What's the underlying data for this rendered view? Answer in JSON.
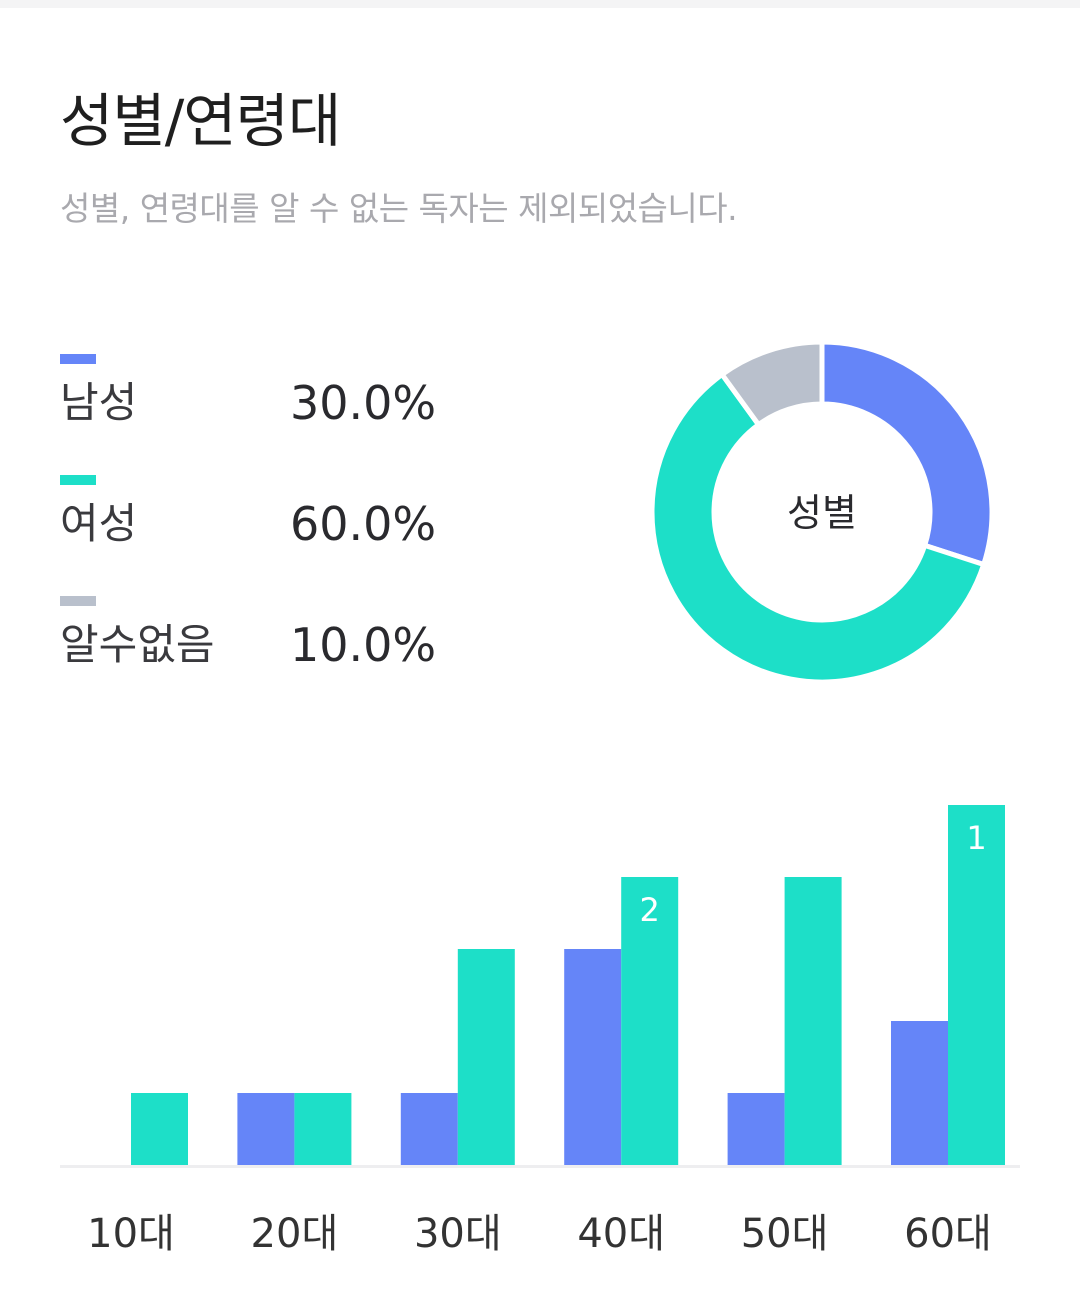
{
  "header": {
    "title": "성별/연령대",
    "subtitle": "성별, 연령대를 알 수 없는 독자는 제외되었습니다."
  },
  "colors": {
    "male": "#6585f8",
    "female": "#1ddfc8",
    "unknown": "#b9c0cc",
    "baseline": "#eeeef0",
    "tick_text": "#333333",
    "bar_label_text": "#ffffff"
  },
  "chart_data": [
    {
      "type": "pie",
      "variant": "donut",
      "center_label": "성별",
      "slices": [
        {
          "label": "남성",
          "value": 30.0,
          "display": "30.0%",
          "color": "#6585f8"
        },
        {
          "label": "여성",
          "value": 60.0,
          "display": "60.0%",
          "color": "#1ddfc8"
        },
        {
          "label": "알수없음",
          "value": 10.0,
          "display": "10.0%",
          "color": "#b9c0cc"
        }
      ],
      "legend_position": "left"
    },
    {
      "type": "bar",
      "categories": [
        "10대",
        "20대",
        "30대",
        "40대",
        "50대",
        "60대"
      ],
      "series": [
        {
          "key": "male",
          "color": "#6585f8",
          "values": [
            0,
            1,
            1,
            3,
            1,
            2
          ]
        },
        {
          "key": "female",
          "color": "#1ddfc8",
          "values": [
            1,
            1,
            3,
            4,
            4,
            5
          ]
        }
      ],
      "data_labels": [
        {
          "category": "40대",
          "series": "female",
          "text": "2"
        },
        {
          "category": "60대",
          "series": "female",
          "text": "1"
        }
      ],
      "ylim": [
        0,
        5
      ],
      "grid": false,
      "y_axis_visible": false
    }
  ]
}
